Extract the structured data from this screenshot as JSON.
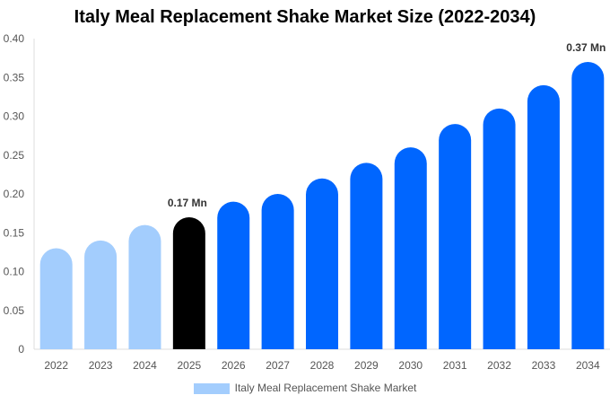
{
  "chart_data": {
    "type": "bar",
    "title": "Italy Meal Replacement Shake Market Size (2022-2034)",
    "categories": [
      "2022",
      "2023",
      "2024",
      "2025",
      "2026",
      "2027",
      "2028",
      "2029",
      "2030",
      "2031",
      "2032",
      "2033",
      "2034"
    ],
    "series": [
      {
        "name": "Italy Meal Replacement Shake Market",
        "values": [
          0.13,
          0.14,
          0.16,
          0.17,
          0.19,
          0.2,
          0.22,
          0.24,
          0.26,
          0.29,
          0.31,
          0.34,
          0.37
        ]
      }
    ],
    "bar_colors": [
      "#a3cdfd",
      "#a3cdfd",
      "#a3cdfd",
      "#000000",
      "#0066ff",
      "#0066ff",
      "#0066ff",
      "#0066ff",
      "#0066ff",
      "#0066ff",
      "#0066ff",
      "#0066ff",
      "#0066ff"
    ],
    "data_labels": [
      {
        "category": "2025",
        "text": "0.17 Mn"
      },
      {
        "category": "2034",
        "text": "0.37 Mn"
      }
    ],
    "yticks": [
      "0",
      "0.05",
      "0.10",
      "0.15",
      "0.20",
      "0.25",
      "0.30",
      "0.35",
      "0.40"
    ],
    "ylim": [
      0,
      0.4
    ],
    "xlabel": "",
    "ylabel": "",
    "grid": false,
    "legend_position": "bottom",
    "legend_color": "#a3cdfd"
  }
}
